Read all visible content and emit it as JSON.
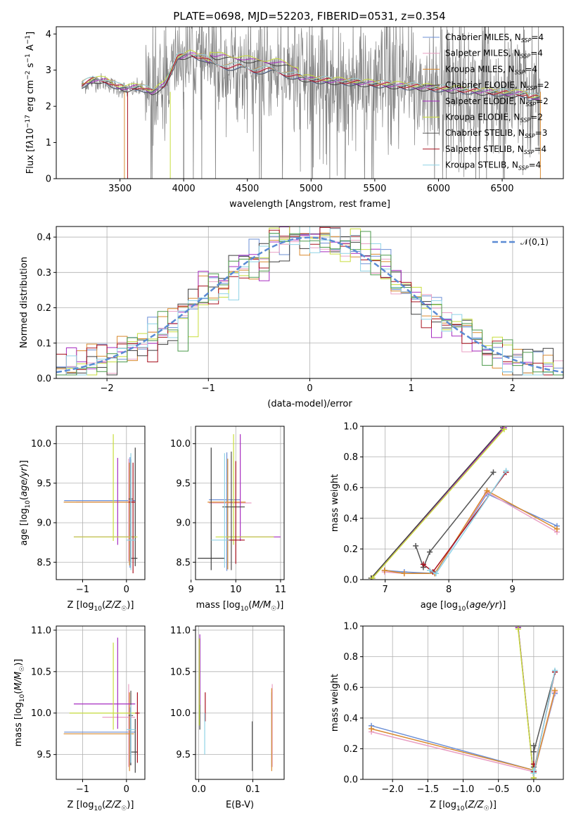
{
  "title": "PLATE=0698, MJD=52203, FIBERID=0531, z=0.354",
  "colors": {
    "Chabrier MILES": "#6b8fd6",
    "Salpeter MILES": "#e9a0c4",
    "Kroupa MILES": "#d98a2f",
    "Chabrier ELODIE": "#3f3f3f",
    "Salpeter ELODIE": "#a62cc0",
    "Kroupa ELODIE": "#c8dd3c",
    "Chabrier STELIB": "#555555",
    "Salpeter STELIB": "#a8121f",
    "Kroupa STELIB": "#8fd3e6",
    "data": "#808080",
    "gauss": "#5b8bd4",
    "hist_green": "#4c9a4c"
  },
  "chart_data": [
    {
      "id": "spectrum",
      "type": "line",
      "title": "PLATE=0698, MJD=52203, FIBERID=0531, z=0.354",
      "xlabel": "wavelength [Angstrom, rest frame]",
      "ylabel_html": "Flux [f<tspan font-style=\"italic\">λ</tspan>10<tspan dy=\"-5\" font-size=\"9\">−17</tspan><tspan dy=\"5\"> erg cm</tspan><tspan dy=\"-5\" font-size=\"9\">−2</tspan><tspan dy=\"5\"> s</tspan><tspan dy=\"-5\" font-size=\"9\">−1</tspan><tspan dy=\"5\"> A</tspan><tspan dy=\"-5\" font-size=\"9\">−1</tspan><tspan dy=\"5\">]</tspan>",
      "xlim": [
        3000,
        6980
      ],
      "ylim": [
        0,
        4.2
      ],
      "xticks": [
        3500,
        4000,
        4500,
        5000,
        5500,
        6000,
        6500
      ],
      "yticks": [
        0,
        1,
        2,
        3,
        4
      ],
      "legend": "top-right",
      "legend_entries": [
        {
          "label": "Chabrier MILES, N",
          "sub": "SSP",
          "tail": "=4"
        },
        {
          "label": "Salpeter MILES, N",
          "sub": "SSP",
          "tail": "=4"
        },
        {
          "label": "Kroupa MILES, N",
          "sub": "SSP",
          "tail": "=4"
        },
        {
          "label": "Chabrier ELODIE, N",
          "sub": "SSP",
          "tail": "=2"
        },
        {
          "label": "Salpeter ELODIE, N",
          "sub": "SSP",
          "tail": "=2"
        },
        {
          "label": "Kroupa ELODIE, N",
          "sub": "SSP",
          "tail": "=2"
        },
        {
          "label": "Chabrier STELIB, N",
          "sub": "SSP",
          "tail": "=3"
        },
        {
          "label": "Salpeter STELIB, N",
          "sub": "SSP",
          "tail": "=4"
        },
        {
          "label": "Kroupa STELIB, N",
          "sub": "SSP",
          "tail": "=4"
        }
      ],
      "model_continuum": [
        [
          3200,
          2.55
        ],
        [
          3300,
          2.7
        ],
        [
          3400,
          2.65
        ],
        [
          3480,
          2.5
        ],
        [
          3560,
          2.45
        ],
        [
          3650,
          2.5
        ],
        [
          3750,
          2.35
        ],
        [
          3850,
          2.55
        ],
        [
          3950,
          3.3
        ],
        [
          4050,
          3.4
        ],
        [
          4150,
          3.3
        ],
        [
          4250,
          3.1
        ],
        [
          4350,
          3.05
        ],
        [
          4450,
          3.05
        ],
        [
          4550,
          2.95
        ],
        [
          4700,
          2.95
        ],
        [
          4850,
          2.8
        ],
        [
          5000,
          2.7
        ],
        [
          5200,
          2.65
        ],
        [
          5400,
          2.6
        ],
        [
          5600,
          2.55
        ],
        [
          5800,
          2.5
        ],
        [
          6000,
          2.45
        ],
        [
          6200,
          2.4
        ],
        [
          6400,
          2.35
        ],
        [
          6600,
          2.3
        ],
        [
          6800,
          2.3
        ]
      ]
    },
    {
      "id": "residuals",
      "type": "step",
      "xlabel": "(data-model)/error",
      "ylabel": "Normed distribution",
      "xlim": [
        -2.5,
        2.5
      ],
      "ylim": [
        0,
        0.43
      ],
      "xticks": [
        -2,
        -1,
        0,
        1,
        2
      ],
      "yticks": [
        0.0,
        0.1,
        0.2,
        0.3,
        0.4
      ],
      "legend": "top-right",
      "gauss_label": "𝒩(0,1)"
    },
    {
      "id": "age_vs_Z",
      "type": "errorbar",
      "xlabel": "Z [log₁₀(Z/Z☉)]",
      "ylabel": "age  [log₁₀(age/yr)]",
      "xlim": [
        -1.6,
        0.42
      ],
      "ylim": [
        8.28,
        10.22
      ],
      "xticks": [
        -1,
        0
      ],
      "yticks": [
        8.5,
        9.0,
        9.5,
        10.0
      ],
      "points": [
        {
          "model": "Chabrier MILES",
          "x": 0.08,
          "xerr": [
            1.5,
            0.12
          ],
          "y": 9.28,
          "yerr": [
            0.85,
            0.55
          ]
        },
        {
          "model": "Salpeter MILES",
          "x": 0.05,
          "xerr": [
            1.2,
            0.15
          ],
          "y": 9.26,
          "yerr": [
            0.75,
            0.55
          ]
        },
        {
          "model": "Kroupa MILES",
          "x": 0.07,
          "xerr": [
            1.5,
            0.1
          ],
          "y": 9.26,
          "yerr": [
            0.8,
            0.5
          ]
        },
        {
          "model": "Chabrier ELODIE",
          "x": 0.2,
          "xerr": [
            0.1,
            0.05
          ],
          "y": 8.55,
          "yerr": [
            0.1,
            1.4
          ]
        },
        {
          "model": "Salpeter ELODIE",
          "x": -0.2,
          "xerr": [
            1.0,
            0.4
          ],
          "y": 8.82,
          "yerr": [
            0.1,
            1.0
          ]
        },
        {
          "model": "Kroupa ELODIE",
          "x": -0.3,
          "xerr": [
            0.9,
            0.55
          ],
          "y": 8.82,
          "yerr": [
            0.05,
            1.3
          ]
        },
        {
          "model": "Chabrier STELIB",
          "x": 0.1,
          "xerr": [
            0.05,
            0.05
          ],
          "y": 9.3,
          "yerr": [
            0.8,
            0.5
          ]
        },
        {
          "model": "Salpeter STELIB",
          "x": 0.15,
          "xerr": [
            0.1,
            0.05
          ],
          "y": 9.26,
          "yerr": [
            0.9,
            0.5
          ]
        },
        {
          "model": "Kroupa STELIB",
          "x": 0.1,
          "xerr": [
            0.1,
            0.1
          ],
          "y": 8.78,
          "yerr": [
            0.38,
            1.1
          ]
        }
      ]
    },
    {
      "id": "age_vs_mass",
      "type": "errorbar",
      "xlabel": "mass [log₁₀(M/M☉)]",
      "ylabel": "",
      "xlim": [
        9.1,
        11.08
      ],
      "ylim": [
        8.28,
        10.22
      ],
      "xticks": [
        9,
        10,
        11
      ],
      "yticks": [
        8.5,
        9.0,
        9.5,
        10.0
      ],
      "points": [
        {
          "model": "Chabrier MILES",
          "x": 9.8,
          "xerr": [
            0.4,
            0.3
          ],
          "y": 9.29,
          "yerr": [
            0.9,
            0.6
          ]
        },
        {
          "model": "Salpeter MILES",
          "x": 9.9,
          "xerr": [
            0.5,
            0.45
          ],
          "y": 9.25,
          "yerr": [
            0.85,
            0.6
          ]
        },
        {
          "model": "Kroupa MILES",
          "x": 9.82,
          "xerr": [
            0.45,
            0.4
          ],
          "y": 9.26,
          "yerr": [
            0.85,
            0.55
          ]
        },
        {
          "model": "Chabrier ELODIE",
          "x": 9.45,
          "xerr": [
            0.3,
            0.3
          ],
          "y": 8.55,
          "yerr": [
            0.15,
            1.4
          ]
        },
        {
          "model": "Salpeter ELODIE",
          "x": 10.1,
          "xerr": [
            0.3,
            0.9
          ],
          "y": 8.82,
          "yerr": [
            0.05,
            1.3
          ]
        },
        {
          "model": "Kroupa ELODIE",
          "x": 9.95,
          "xerr": [
            0.4,
            0.9
          ],
          "y": 8.82,
          "yerr": [
            0.1,
            1.3
          ]
        },
        {
          "model": "Chabrier STELIB",
          "x": 9.9,
          "xerr": [
            0.2,
            0.3
          ],
          "y": 9.2,
          "yerr": [
            0.8,
            0.7
          ]
        },
        {
          "model": "Salpeter STELIB",
          "x": 10.0,
          "xerr": [
            0.2,
            0.2
          ],
          "y": 8.78,
          "yerr": [
            0.3,
            1.0
          ]
        },
        {
          "model": "Kroupa STELIB",
          "x": 9.75,
          "xerr": [
            0.3,
            0.1
          ],
          "y": 8.78,
          "yerr": [
            0.35,
            1.1
          ]
        }
      ]
    },
    {
      "id": "massweight_vs_age",
      "type": "line",
      "xlabel": "age  [log₁₀(age/yr)]",
      "ylabel": "mass weight",
      "xlim": [
        6.65,
        9.8
      ],
      "ylim": [
        0,
        1
      ],
      "xticks": [
        7,
        8,
        9
      ],
      "yticks": [
        0.0,
        0.2,
        0.4,
        0.6,
        0.8,
        1.0
      ],
      "series": [
        {
          "model": "Chabrier MILES",
          "x": [
            6.99,
            7.3,
            7.78,
            8.6,
            9.7
          ],
          "y": [
            0.06,
            0.05,
            0.04,
            0.56,
            0.35
          ]
        },
        {
          "model": "Salpeter MILES",
          "x": [
            6.99,
            7.3,
            7.78,
            8.6,
            9.7
          ],
          "y": [
            0.05,
            0.04,
            0.04,
            0.57,
            0.31
          ]
        },
        {
          "model": "Kroupa MILES",
          "x": [
            6.99,
            7.3,
            7.78,
            8.6,
            9.7
          ],
          "y": [
            0.06,
            0.04,
            0.04,
            0.58,
            0.33
          ]
        },
        {
          "model": "Chabrier ELODIE",
          "x": [
            6.78,
            8.85
          ],
          "y": [
            0.01,
            0.99
          ]
        },
        {
          "model": "Salpeter ELODIE",
          "x": [
            6.8,
            8.87
          ],
          "y": [
            0.01,
            0.99
          ]
        },
        {
          "model": "Kroupa ELODIE",
          "x": [
            6.8,
            8.87
          ],
          "y": [
            0.01,
            0.98
          ]
        },
        {
          "model": "Chabrier STELIB",
          "x": [
            7.48,
            7.6,
            7.7,
            8.7
          ],
          "y": [
            0.22,
            0.08,
            0.18,
            0.7
          ]
        },
        {
          "model": "Salpeter STELIB",
          "x": [
            7.6,
            7.75,
            8.9
          ],
          "y": [
            0.1,
            0.05,
            0.7
          ]
        },
        {
          "model": "Kroupa STELIB",
          "x": [
            7.7,
            7.8,
            8.9
          ],
          "y": [
            0.06,
            0.04,
            0.71
          ]
        }
      ]
    },
    {
      "id": "mass_vs_Z",
      "type": "errorbar",
      "xlabel": "Z [log₁₀(Z/Z☉)]",
      "ylabel": "mass [log₁₀(M/M☉)]",
      "xlim": [
        -1.6,
        0.42
      ],
      "ylim": [
        9.2,
        11.05
      ],
      "xticks": [
        -1,
        0
      ],
      "yticks": [
        9.5,
        10.0,
        10.5,
        11.0
      ],
      "points": [
        {
          "model": "Chabrier MILES",
          "x": 0.08,
          "xerr": [
            1.5,
            0.12
          ],
          "y": 9.77,
          "yerr": [
            0.4,
            0.3
          ]
        },
        {
          "model": "Salpeter MILES",
          "x": 0.05,
          "xerr": [
            0.6,
            0.15
          ],
          "y": 9.95,
          "yerr": [
            0.6,
            0.4
          ]
        },
        {
          "model": "Kroupa MILES",
          "x": 0.07,
          "xerr": [
            1.5,
            0.1
          ],
          "y": 9.75,
          "yerr": [
            0.45,
            0.5
          ]
        },
        {
          "model": "Chabrier ELODIE",
          "x": 0.2,
          "xerr": [
            0.1,
            0.05
          ],
          "y": 9.53,
          "yerr": [
            0.25,
            0.4
          ]
        },
        {
          "model": "Salpeter ELODIE",
          "x": -0.2,
          "xerr": [
            1.0,
            0.4
          ],
          "y": 10.11,
          "yerr": [
            0.3,
            0.8
          ]
        },
        {
          "model": "Kroupa ELODIE",
          "x": -0.3,
          "xerr": [
            1.0,
            0.55
          ],
          "y": 10.0,
          "yerr": [
            0.2,
            0.85
          ]
        },
        {
          "model": "Chabrier STELIB",
          "x": 0.1,
          "xerr": [
            0.05,
            0.05
          ],
          "y": 9.97,
          "yerr": [
            0.6,
            0.3
          ]
        },
        {
          "model": "Salpeter STELIB",
          "x": 0.25,
          "xerr": [
            0.05,
            0.05
          ],
          "y": 10.0,
          "yerr": [
            0.6,
            0.25
          ]
        },
        {
          "model": "Kroupa STELIB",
          "x": 0.1,
          "xerr": [
            0.1,
            0.1
          ],
          "y": 9.8,
          "yerr": [
            0.4,
            0.3
          ]
        }
      ]
    },
    {
      "id": "mass_vs_EBV",
      "type": "errorbar",
      "xlabel": "E(B-V)",
      "ylabel": "",
      "xlim": [
        -0.006,
        0.158
      ],
      "ylim": [
        9.2,
        11.05
      ],
      "xticks": [
        0.0,
        0.1
      ],
      "yticks": [
        9.5,
        10.0,
        10.5,
        11.0
      ],
      "points": [
        {
          "model": "Chabrier MILES",
          "x": 0.135,
          "xerr": [
            0,
            0
          ],
          "y": 9.85,
          "yerr": [
            0.5,
            0.4
          ]
        },
        {
          "model": "Salpeter MILES",
          "x": 0.136,
          "xerr": [
            0,
            0
          ],
          "y": 9.9,
          "yerr": [
            0.55,
            0.45
          ]
        },
        {
          "model": "Kroupa MILES",
          "x": 0.135,
          "xerr": [
            0,
            0
          ],
          "y": 9.8,
          "yerr": [
            0.5,
            0.5
          ]
        },
        {
          "model": "Chabrier ELODIE",
          "x": 0.002,
          "xerr": [
            0,
            0
          ],
          "y": 10.5,
          "yerr": [
            0.7,
            0.4
          ]
        },
        {
          "model": "Salpeter ELODIE",
          "x": 0.002,
          "xerr": [
            0,
            0
          ],
          "y": 10.6,
          "yerr": [
            0.5,
            0.35
          ]
        },
        {
          "model": "Kroupa ELODIE",
          "x": 0.001,
          "xerr": [
            0,
            0
          ],
          "y": 10.4,
          "yerr": [
            0.55,
            0.5
          ]
        },
        {
          "model": "Chabrier STELIB",
          "x": 0.099,
          "xerr": [
            0,
            0
          ],
          "y": 9.6,
          "yerr": [
            0.3,
            0.3
          ]
        },
        {
          "model": "Salpeter STELIB",
          "x": 0.012,
          "xerr": [
            0,
            0
          ],
          "y": 10.1,
          "yerr": [
            0.2,
            0.15
          ]
        },
        {
          "model": "Kroupa STELIB",
          "x": 0.011,
          "xerr": [
            0,
            0
          ],
          "y": 9.75,
          "yerr": [
            0.25,
            0.25
          ]
        }
      ]
    },
    {
      "id": "massweight_vs_Z",
      "type": "line",
      "xlabel": "Z [log₁₀(Z/Z☉)]",
      "ylabel": "mass weight",
      "xlim": [
        -2.42,
        0.42
      ],
      "ylim": [
        0,
        1
      ],
      "xticks": [
        -2.0,
        -1.5,
        -1.0,
        -0.5,
        0.0
      ],
      "yticks": [
        0.0,
        0.2,
        0.4,
        0.6,
        0.8,
        1.0
      ],
      "series": [
        {
          "model": "Chabrier MILES",
          "x": [
            -2.3,
            0.0,
            0.0,
            0.0,
            0.3
          ],
          "y": [
            0.35,
            0.06,
            0.05,
            0.04,
            0.56
          ]
        },
        {
          "model": "Salpeter MILES",
          "x": [
            -2.3,
            0.0,
            0.0,
            0.0,
            0.3
          ],
          "y": [
            0.31,
            0.05,
            0.04,
            0.04,
            0.57
          ]
        },
        {
          "model": "Kroupa MILES",
          "x": [
            -2.3,
            0.0,
            0.0,
            0.0,
            0.3
          ],
          "y": [
            0.33,
            0.06,
            0.04,
            0.04,
            0.58
          ]
        },
        {
          "model": "Chabrier ELODIE",
          "x": [
            -0.22,
            0.0
          ],
          "y": [
            0.99,
            0.01
          ]
        },
        {
          "model": "Salpeter ELODIE",
          "x": [
            -0.22,
            0.0
          ],
          "y": [
            0.99,
            0.01
          ]
        },
        {
          "model": "Kroupa ELODIE",
          "x": [
            -0.22,
            0.0
          ],
          "y": [
            0.98,
            0.01
          ]
        },
        {
          "model": "Chabrier STELIB",
          "x": [
            0.0,
            0.0,
            0.0,
            0.3
          ],
          "y": [
            0.22,
            0.08,
            0.18,
            0.7
          ]
        },
        {
          "model": "Salpeter STELIB",
          "x": [
            0.0,
            0.0,
            0.3
          ],
          "y": [
            0.1,
            0.05,
            0.7
          ]
        },
        {
          "model": "Kroupa STELIB",
          "x": [
            0.0,
            0.0,
            0.3
          ],
          "y": [
            0.06,
            0.04,
            0.71
          ]
        }
      ]
    }
  ]
}
